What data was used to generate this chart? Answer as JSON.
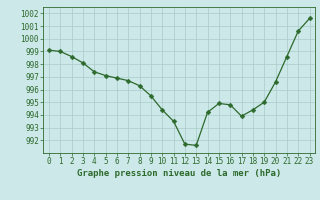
{
  "x": [
    0,
    1,
    2,
    3,
    4,
    5,
    6,
    7,
    8,
    9,
    10,
    11,
    12,
    13,
    14,
    15,
    16,
    17,
    18,
    19,
    20,
    21,
    22,
    23
  ],
  "y": [
    999.1,
    999.0,
    998.6,
    998.1,
    997.4,
    997.1,
    996.9,
    996.7,
    996.3,
    995.5,
    994.4,
    993.5,
    991.7,
    991.6,
    994.2,
    994.9,
    994.8,
    993.9,
    994.4,
    995.0,
    996.6,
    998.6,
    1000.6,
    1001.6
  ],
  "line_color": "#2d6a2d",
  "marker": "D",
  "marker_size": 2.5,
  "bg_color": "#cce8e8",
  "grid_color": "#aacccc",
  "xlabel": "Graphe pression niveau de la mer (hPa)",
  "xlabel_color": "#2d6a2d",
  "tick_color": "#2d6a2d",
  "ylim": [
    991.0,
    1002.5
  ],
  "xlim": [
    -0.5,
    23.5
  ],
  "yticks": [
    992,
    993,
    994,
    995,
    996,
    997,
    998,
    999,
    1000,
    1001,
    1002
  ],
  "xticks": [
    0,
    1,
    2,
    3,
    4,
    5,
    6,
    7,
    8,
    9,
    10,
    11,
    12,
    13,
    14,
    15,
    16,
    17,
    18,
    19,
    20,
    21,
    22,
    23
  ],
  "tick_fontsize": 5.5,
  "xlabel_fontsize": 6.5
}
